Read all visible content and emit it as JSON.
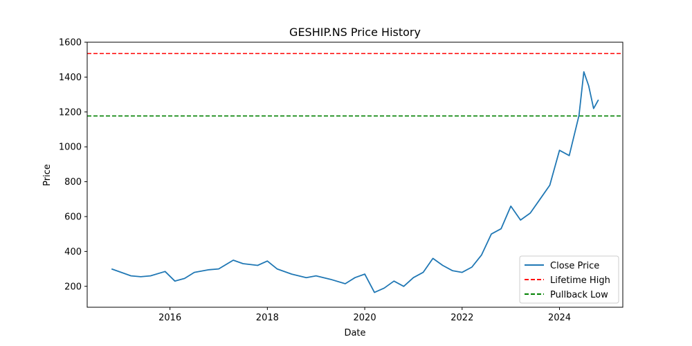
{
  "chart_data": {
    "type": "line",
    "title": "GESHIP.NS Price History",
    "xlabel": "Date",
    "ylabel": "Price",
    "xlim": [
      2014.3,
      2025.3
    ],
    "ylim": [
      80,
      1600
    ],
    "x_ticks": [
      2016,
      2018,
      2020,
      2022,
      2024
    ],
    "x_tick_labels": [
      "2016",
      "2018",
      "2020",
      "2022",
      "2024"
    ],
    "y_ticks": [
      200,
      400,
      600,
      800,
      1000,
      1200,
      1400,
      1600
    ],
    "y_tick_labels": [
      "200",
      "400",
      "600",
      "800",
      "1000",
      "1200",
      "1400",
      "1600"
    ],
    "grid": false,
    "legend_position": "lower-right",
    "series": [
      {
        "name": "Close Price",
        "color": "#1f77b4",
        "style": "solid",
        "x": [
          2014.8,
          2015.0,
          2015.2,
          2015.4,
          2015.6,
          2015.9,
          2016.1,
          2016.3,
          2016.5,
          2016.8,
          2017.0,
          2017.3,
          2017.5,
          2017.8,
          2018.0,
          2018.2,
          2018.5,
          2018.8,
          2019.0,
          2019.3,
          2019.6,
          2019.8,
          2020.0,
          2020.2,
          2020.4,
          2020.6,
          2020.8,
          2021.0,
          2021.2,
          2021.4,
          2021.6,
          2021.8,
          2022.0,
          2022.2,
          2022.4,
          2022.6,
          2022.8,
          2023.0,
          2023.2,
          2023.4,
          2023.6,
          2023.8,
          2024.0,
          2024.2,
          2024.4,
          2024.5,
          2024.6,
          2024.7,
          2024.8
        ],
        "y": [
          300,
          280,
          260,
          255,
          260,
          285,
          230,
          245,
          280,
          295,
          300,
          350,
          330,
          320,
          345,
          300,
          270,
          250,
          260,
          240,
          215,
          250,
          270,
          165,
          190,
          230,
          200,
          250,
          280,
          360,
          320,
          290,
          280,
          310,
          380,
          500,
          530,
          660,
          580,
          620,
          700,
          780,
          980,
          950,
          1180,
          1430,
          1350,
          1220,
          1270
        ]
      },
      {
        "name": "Lifetime High",
        "color": "#ff0000",
        "style": "dashed",
        "value": 1535
      },
      {
        "name": "Pullback Low",
        "color": "#008000",
        "style": "dashed",
        "value": 1177
      }
    ]
  }
}
